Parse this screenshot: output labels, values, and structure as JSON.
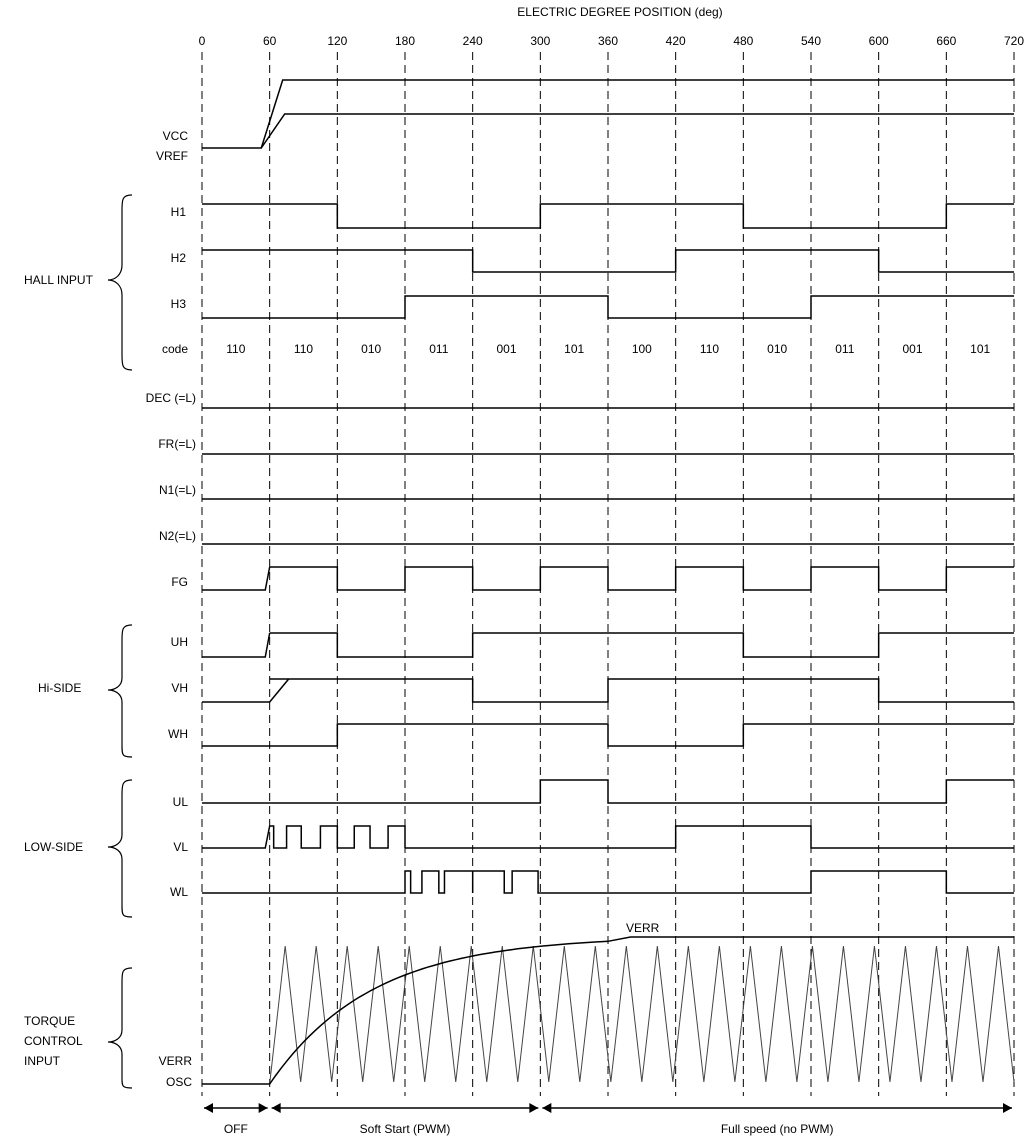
{
  "header": {
    "title": "ELECTRIC DEGREE POSITION (deg)"
  },
  "degree_ticks": [
    "0",
    "60",
    "120",
    "180",
    "240",
    "300",
    "360",
    "420",
    "480",
    "540",
    "600",
    "660",
    "720"
  ],
  "vcc_labels": [
    "VCC",
    "VREF"
  ],
  "groups": {
    "hall": "HALL INPUT",
    "hi_side": "Hi-SIDE",
    "low_side": "LOW-SIDE",
    "torque": [
      "TORQUE",
      "CONTROL",
      "INPUT"
    ]
  },
  "signals": {
    "H1": "H1",
    "H2": "H2",
    "H3": "H3",
    "DEC": "DEC (=L)",
    "FR": "FR(=L)",
    "N1": "N1(=L)",
    "N2": "N2(=L)",
    "FG": "FG",
    "UH": "UH",
    "VH": "VH",
    "WH": "WH",
    "UL": "UL",
    "VL": "VL",
    "WL": "WL",
    "VERR": "VERR",
    "OSC": "OSC"
  },
  "code_label": "code",
  "hall_codes": [
    "110",
    "110",
    "010",
    "011",
    "001",
    "101",
    "100",
    "110",
    "010",
    "011",
    "001",
    "101"
  ],
  "verr_curve_label": "VERR",
  "phases": [
    {
      "label": "OFF",
      "from_deg": 0,
      "to_deg": 60
    },
    {
      "label": "Soft Start (PWM)",
      "from_deg": 60,
      "to_deg": 300
    },
    {
      "label": "Full speed (no PWM)",
      "from_deg": 300,
      "to_deg": 720
    }
  ],
  "levels": {
    "H1": [
      [
        0,
        120,
        1
      ],
      [
        120,
        300,
        0
      ],
      [
        300,
        480,
        1
      ],
      [
        480,
        660,
        0
      ],
      [
        660,
        720,
        1
      ]
    ],
    "H2": [
      [
        0,
        240,
        1
      ],
      [
        240,
        420,
        0
      ],
      [
        420,
        600,
        1
      ],
      [
        600,
        720,
        0
      ]
    ],
    "H3": [
      [
        0,
        180,
        0
      ],
      [
        180,
        360,
        1
      ],
      [
        360,
        540,
        0
      ],
      [
        540,
        720,
        1
      ]
    ],
    "FG": [
      [
        60,
        120,
        1
      ],
      [
        120,
        180,
        0
      ],
      [
        180,
        240,
        1
      ],
      [
        240,
        300,
        0
      ],
      [
        300,
        360,
        1
      ],
      [
        360,
        420,
        0
      ],
      [
        420,
        480,
        1
      ],
      [
        480,
        540,
        0
      ],
      [
        540,
        600,
        1
      ],
      [
        600,
        660,
        0
      ],
      [
        660,
        720,
        1
      ]
    ],
    "UH": [
      [
        60,
        120,
        1
      ],
      [
        120,
        240,
        0
      ],
      [
        240,
        480,
        1
      ],
      [
        480,
        600,
        0
      ],
      [
        600,
        720,
        1
      ]
    ],
    "VH": [
      [
        60,
        240,
        1
      ],
      [
        240,
        360,
        0
      ],
      [
        360,
        600,
        1
      ],
      [
        600,
        720,
        0
      ]
    ],
    "WH": [
      [
        0,
        120,
        0
      ],
      [
        120,
        360,
        1
      ],
      [
        360,
        480,
        0
      ],
      [
        480,
        720,
        1
      ]
    ],
    "UL": [
      [
        0,
        300,
        0
      ],
      [
        300,
        360,
        1
      ],
      [
        360,
        420,
        0
      ],
      [
        420,
        660,
        0
      ],
      [
        660,
        720,
        1
      ]
    ],
    "VL_after": [
      [
        180,
        420,
        0
      ],
      [
        420,
        540,
        1
      ],
      [
        540,
        720,
        0
      ]
    ],
    "WL_after": [
      [
        300,
        540,
        0
      ],
      [
        540,
        660,
        1
      ],
      [
        660,
        720,
        0
      ]
    ]
  }
}
